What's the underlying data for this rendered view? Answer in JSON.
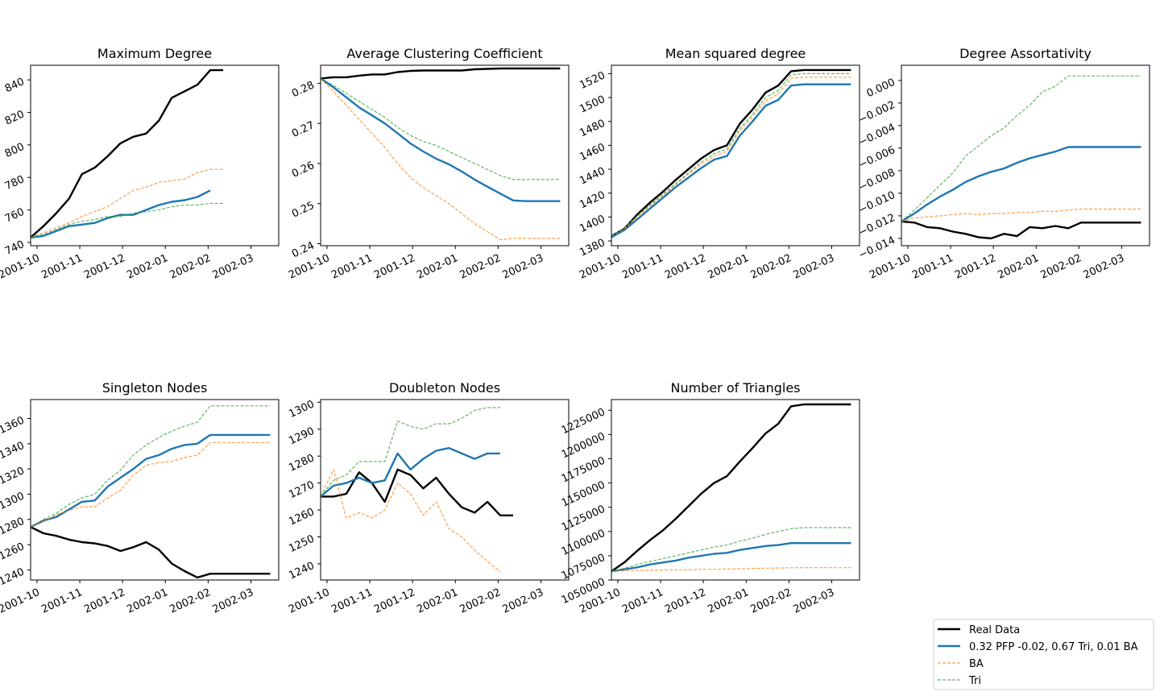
{
  "legend": {
    "placement": "bottom-right",
    "entries": [
      {
        "label": "Real Data",
        "color": "#000000",
        "style": "solid-thick"
      },
      {
        "label": "0.32 PFP -0.02, 0.67 Tri, 0.01 BA",
        "color": "#1f77b4",
        "style": "solid-thick"
      },
      {
        "label": "BA",
        "color": "#ff7f0e",
        "style": "dashed"
      },
      {
        "label": "Tri",
        "color": "#2ca02c",
        "style": "dashed"
      }
    ]
  },
  "chart_data": [
    {
      "type": "line",
      "title": "Maximum Degree",
      "x_ticks": [
        "2001-10",
        "2001-11",
        "2001-12",
        "2002-01",
        "2002-02",
        "2002-03"
      ],
      "x_range": [
        -0.15,
        5.65
      ],
      "y_ticks": [
        "740",
        "760",
        "780",
        "800",
        "820",
        "840"
      ],
      "ylim": [
        738,
        849
      ],
      "grid": false,
      "x": [
        -0.15,
        0.15,
        0.45,
        0.75,
        1.05,
        1.35,
        1.65,
        1.95,
        2.25,
        2.55,
        2.85,
        3.15,
        3.45,
        3.75,
        4.05,
        4.35,
        4.65,
        4.95,
        5.25,
        5.45
      ],
      "series": [
        {
          "name": "Real Data",
          "values": [
            743,
            750,
            758,
            767,
            782,
            786,
            793,
            801,
            805,
            807,
            815,
            829,
            833,
            837,
            846,
            846,
            null,
            null,
            null,
            null
          ]
        },
        {
          "name": "0.32 PFP -0.02, 0.67 Tri, 0.01 BA",
          "values": [
            743,
            744,
            747,
            750,
            751,
            752,
            755,
            757,
            757,
            760,
            763,
            765,
            766,
            768,
            772,
            null,
            null,
            null,
            null,
            null
          ]
        },
        {
          "name": "BA",
          "values": [
            743,
            746,
            749,
            752,
            756,
            759,
            762,
            767,
            772,
            774,
            777,
            778,
            779,
            783,
            785,
            785,
            null,
            null,
            null,
            null
          ]
        },
        {
          "name": "Tri",
          "values": [
            743,
            745,
            748,
            751,
            753,
            754,
            756,
            756,
            758,
            759,
            760,
            762,
            763,
            763,
            764,
            764,
            null,
            null,
            null,
            null
          ]
        }
      ]
    },
    {
      "type": "line",
      "title": "Average Clustering Coefficient",
      "x_ticks": [
        "2001-10",
        "2001-11",
        "2001-12",
        "2002-01",
        "2002-02",
        "2002-03"
      ],
      "x_range": [
        -0.15,
        5.65
      ],
      "y_ticks": [
        "0.24",
        "0.25",
        "0.26",
        "0.27",
        "0.28"
      ],
      "ylim": [
        0.2395,
        0.2845
      ],
      "grid": false,
      "x": [
        -0.15,
        0.15,
        0.45,
        0.75,
        1.05,
        1.35,
        1.65,
        1.95,
        2.25,
        2.55,
        2.85,
        3.15,
        3.45,
        3.75,
        4.05,
        4.35,
        4.65,
        4.95,
        5.25,
        5.45
      ],
      "series": [
        {
          "name": "Real Data",
          "values": [
            0.2812,
            0.2815,
            0.2815,
            0.2819,
            0.2822,
            0.2822,
            0.2828,
            0.2831,
            0.2832,
            0.2832,
            0.2832,
            0.2832,
            0.2835,
            0.2836,
            0.2837,
            0.2837,
            0.2837,
            0.2837,
            0.2837,
            0.2837
          ]
        },
        {
          "name": "0.32 PFP -0.02, 0.67 Tri, 0.01 BA",
          "values": [
            0.2812,
            0.279,
            0.2765,
            0.274,
            0.272,
            0.27,
            0.2675,
            0.265,
            0.263,
            0.2612,
            0.2598,
            0.258,
            0.256,
            0.2542,
            0.2525,
            0.2508,
            0.2506,
            0.2506,
            0.2506,
            0.2506
          ]
        },
        {
          "name": "BA",
          "values": [
            0.2812,
            0.278,
            0.2745,
            0.271,
            0.2675,
            0.264,
            0.26,
            0.2565,
            0.254,
            0.252,
            0.25,
            0.2475,
            0.245,
            0.243,
            0.241,
            0.2413,
            0.2413,
            0.2413,
            0.2413,
            0.2413
          ]
        },
        {
          "name": "Tri",
          "values": [
            0.2812,
            0.2795,
            0.2775,
            0.2755,
            0.2735,
            0.2715,
            0.269,
            0.267,
            0.2655,
            0.2645,
            0.263,
            0.2615,
            0.26,
            0.2585,
            0.257,
            0.256,
            0.256,
            0.256,
            0.256,
            0.256
          ]
        }
      ]
    },
    {
      "type": "line",
      "title": "Mean squared degree",
      "x_ticks": [
        "2001-10",
        "2001-11",
        "2001-12",
        "2002-01",
        "2002-02",
        "2002-03"
      ],
      "x_range": [
        -0.15,
        5.65
      ],
      "y_ticks": [
        "1380",
        "1400",
        "1420",
        "1440",
        "1460",
        "1480",
        "1500",
        "1520"
      ],
      "ylim": [
        1376,
        1527
      ],
      "grid": false,
      "x": [
        -0.15,
        0.15,
        0.45,
        0.75,
        1.05,
        1.35,
        1.65,
        1.95,
        2.25,
        2.55,
        2.85,
        3.15,
        3.45,
        3.75,
        4.05,
        4.35,
        4.65,
        4.95,
        5.25,
        5.45
      ],
      "series": [
        {
          "name": "Real Data",
          "values": [
            1384,
            1390,
            1402,
            1412,
            1421,
            1431,
            1440,
            1449,
            1456,
            1460,
            1478,
            1490,
            1504,
            1510,
            1522,
            1523,
            1523,
            1523,
            1523,
            1523
          ]
        },
        {
          "name": "0.32 PFP -0.02, 0.67 Tri, 0.01 BA",
          "values": [
            1383,
            1389,
            1398,
            1407,
            1416,
            1425,
            1433,
            1441,
            1448,
            1451,
            1468,
            1480,
            1493,
            1498,
            1510,
            1511,
            1511,
            1511,
            1511,
            1511
          ]
        },
        {
          "name": "BA",
          "values": [
            1384,
            1390,
            1400,
            1409,
            1418,
            1427,
            1436,
            1444,
            1451,
            1455,
            1472,
            1484,
            1497,
            1503,
            1516,
            1517,
            1517,
            1517,
            1517,
            1517
          ]
        },
        {
          "name": "Tri",
          "values": [
            1384,
            1391,
            1401,
            1410,
            1419,
            1428,
            1437,
            1446,
            1453,
            1457,
            1474,
            1486,
            1500,
            1506,
            1519,
            1520,
            1520,
            1520,
            1520,
            1520
          ]
        }
      ]
    },
    {
      "type": "line",
      "title": "Degree Assortativity",
      "x_ticks": [
        "2001-10",
        "2001-11",
        "2001-12",
        "2002-01",
        "2002-02",
        "2002-03"
      ],
      "x_range": [
        -0.15,
        5.65
      ],
      "y_ticks": [
        "−0.014",
        "−0.012",
        "−0.010",
        "−0.008",
        "−0.006",
        "−0.004",
        "−0.002",
        "0.000"
      ],
      "ylim": [
        -0.01465,
        0.00135
      ],
      "grid": false,
      "x": [
        -0.15,
        0.15,
        0.45,
        0.75,
        1.05,
        1.35,
        1.65,
        1.95,
        2.25,
        2.55,
        2.85,
        3.15,
        3.45,
        3.75,
        4.05,
        4.35,
        4.65,
        4.95,
        5.25,
        5.45
      ],
      "series": [
        {
          "name": "Real Data",
          "values": [
            -0.0125,
            -0.0126,
            -0.013,
            -0.0131,
            -0.0134,
            -0.0136,
            -0.0139,
            -0.014,
            -0.0136,
            -0.0138,
            -0.013,
            -0.0131,
            -0.0129,
            -0.0131,
            -0.0126,
            -0.0126,
            -0.0126,
            -0.0126,
            -0.0126,
            -0.0126
          ]
        },
        {
          "name": "0.32 PFP -0.02, 0.67 Tri, 0.01 BA",
          "values": [
            -0.0125,
            -0.0118,
            -0.011,
            -0.0103,
            -0.0097,
            -0.009,
            -0.0085,
            -0.0081,
            -0.0078,
            -0.0073,
            -0.0069,
            -0.0066,
            -0.0063,
            -0.0059,
            -0.0059,
            -0.0059,
            -0.0059,
            -0.0059,
            -0.0059,
            -0.0059
          ]
        },
        {
          "name": "BA",
          "values": [
            -0.0125,
            -0.0122,
            -0.0121,
            -0.012,
            -0.0119,
            -0.0118,
            -0.0119,
            -0.0118,
            -0.0118,
            -0.0117,
            -0.0117,
            -0.0116,
            -0.0116,
            -0.0115,
            -0.0114,
            -0.0114,
            -0.0114,
            -0.0114,
            -0.0114,
            -0.0114
          ]
        },
        {
          "name": "Tri",
          "values": [
            -0.0125,
            -0.0115,
            -0.0104,
            -0.0093,
            -0.0082,
            -0.0067,
            -0.0058,
            -0.0049,
            -0.0042,
            -0.0031,
            -0.0022,
            -0.001,
            -0.0005,
            0.0004,
            0.0004,
            0.0004,
            0.0004,
            0.0004,
            0.0004,
            0.0004
          ]
        }
      ]
    },
    {
      "type": "line",
      "title": "Singleton Nodes",
      "x_ticks": [
        "2001-10",
        "2001-11",
        "2001-12",
        "2002-01",
        "2002-02",
        "2002-03"
      ],
      "x_range": [
        -0.15,
        5.65
      ],
      "y_ticks": [
        "1240",
        "1260",
        "1280",
        "1300",
        "1320",
        "1340",
        "1360"
      ],
      "ylim": [
        1232,
        1375
      ],
      "grid": false,
      "x": [
        -0.15,
        0.15,
        0.45,
        0.75,
        1.05,
        1.35,
        1.65,
        1.95,
        2.25,
        2.55,
        2.85,
        3.15,
        3.45,
        3.75,
        4.05,
        4.35,
        4.65,
        4.95,
        5.25,
        5.45
      ],
      "series": [
        {
          "name": "Real Data",
          "values": [
            1274,
            1269,
            1267,
            1264,
            1262,
            1261,
            1259,
            1255,
            1258,
            1262,
            1256,
            1245,
            1239,
            1234,
            1237,
            1237,
            1237,
            1237,
            1237,
            1237
          ]
        },
        {
          "name": "0.32 PFP -0.02, 0.67 Tri, 0.01 BA",
          "values": [
            1274,
            1279,
            1282,
            1288,
            1294,
            1295,
            1306,
            1313,
            1320,
            1328,
            1331,
            1336,
            1339,
            1340,
            1347,
            1347,
            1347,
            1347,
            1347,
            1347
          ]
        },
        {
          "name": "BA",
          "values": [
            1274,
            1278,
            1284,
            1287,
            1290,
            1290,
            1297,
            1303,
            1315,
            1323,
            1325,
            1326,
            1329,
            1331,
            1341,
            1341,
            1341,
            1341,
            1341,
            1341
          ]
        },
        {
          "name": "Tri",
          "values": [
            1274,
            1280,
            1285,
            1292,
            1297,
            1300,
            1311,
            1319,
            1331,
            1339,
            1345,
            1350,
            1354,
            1357,
            1370,
            1370,
            1370,
            1370,
            1370,
            1370
          ]
        }
      ]
    },
    {
      "type": "line",
      "title": "Doubleton Nodes",
      "x_ticks": [
        "2001-10",
        "2001-11",
        "2001-12",
        "2002-01",
        "2002-02",
        "2002-03"
      ],
      "x_range": [
        -0.15,
        5.65
      ],
      "y_ticks": [
        "1240",
        "1250",
        "1260",
        "1270",
        "1280",
        "1290",
        "1300"
      ],
      "ylim": [
        1234,
        1301
      ],
      "grid": false,
      "x": [
        -0.15,
        0.15,
        0.45,
        0.75,
        1.05,
        1.35,
        1.65,
        1.95,
        2.25,
        2.55,
        2.85,
        3.15,
        3.45,
        3.75,
        4.05,
        4.35,
        4.65,
        4.95,
        5.25,
        5.45
      ],
      "series": [
        {
          "name": "Real Data",
          "values": [
            1265,
            1265,
            1266,
            1274,
            1270,
            1263,
            1275,
            1273,
            1268,
            1272,
            1266,
            1261,
            1259,
            1263,
            1258,
            1258,
            null,
            null,
            null,
            null
          ]
        },
        {
          "name": "0.32 PFP -0.02, 0.67 Tri, 0.01 BA",
          "values": [
            1265,
            1269,
            1270,
            1272,
            1270,
            1271,
            1281,
            1275,
            1279,
            1282,
            1283,
            1281,
            1279,
            1281,
            1281,
            null,
            null,
            null,
            null,
            null
          ]
        },
        {
          "name": "BA",
          "values": [
            1265,
            1275,
            1257,
            1259,
            1257,
            1260,
            1270,
            1266,
            1258,
            1263,
            1253,
            1250,
            1245,
            1241,
            1237,
            null,
            null,
            null,
            null,
            null
          ]
        },
        {
          "name": "Tri",
          "values": [
            1265,
            1271,
            1273,
            1278,
            1278,
            1278,
            1293,
            1291,
            1290,
            1292,
            1292,
            1294,
            1297,
            1298,
            1298,
            null,
            null,
            null,
            null,
            null
          ]
        }
      ]
    },
    {
      "type": "line",
      "title": "Number of Triangles",
      "x_ticks": [
        "2001-10",
        "2001-11",
        "2001-12",
        "2002-01",
        "2002-02",
        "2002-03"
      ],
      "x_range": [
        -0.15,
        5.65
      ],
      "y_ticks": [
        "1050000",
        "1075000",
        "1100000",
        "1125000",
        "1150000",
        "1175000",
        "1200000",
        "1225000"
      ],
      "ylim": [
        1050000,
        1236000
      ],
      "grid": false,
      "x": [
        -0.15,
        0.15,
        0.45,
        0.75,
        1.05,
        1.35,
        1.65,
        1.95,
        2.25,
        2.55,
        2.85,
        3.15,
        3.45,
        3.75,
        4.05,
        4.35,
        4.65,
        4.95,
        5.25,
        5.45
      ],
      "series": [
        {
          "name": "Real Data",
          "values": [
            1059000,
            1068000,
            1080000,
            1091000,
            1101000,
            1113000,
            1126000,
            1139000,
            1150000,
            1157000,
            1172000,
            1186000,
            1201000,
            1211000,
            1229000,
            1231000,
            1231000,
            1231000,
            1231000,
            1231000
          ]
        },
        {
          "name": "0.32 PFP -0.02, 0.67 Tri, 0.01 BA",
          "values": [
            1059000,
            1061000,
            1063000,
            1066000,
            1068000,
            1070000,
            1073000,
            1075000,
            1077000,
            1078000,
            1081000,
            1083000,
            1085000,
            1086000,
            1088000,
            1088000,
            1088000,
            1088000,
            1088000,
            1088000
          ]
        },
        {
          "name": "BA",
          "values": [
            1059000,
            1059500,
            1059800,
            1060000,
            1060300,
            1060500,
            1060700,
            1060900,
            1061100,
            1061300,
            1061600,
            1061900,
            1062200,
            1062400,
            1062600,
            1062700,
            1062700,
            1062700,
            1062700,
            1062700
          ]
        },
        {
          "name": "Tri",
          "values": [
            1059000,
            1062000,
            1066000,
            1069000,
            1072000,
            1075000,
            1078000,
            1081000,
            1084000,
            1086000,
            1090000,
            1093000,
            1097000,
            1100000,
            1103000,
            1104000,
            1104000,
            1104000,
            1104000,
            1104000
          ]
        }
      ]
    }
  ]
}
